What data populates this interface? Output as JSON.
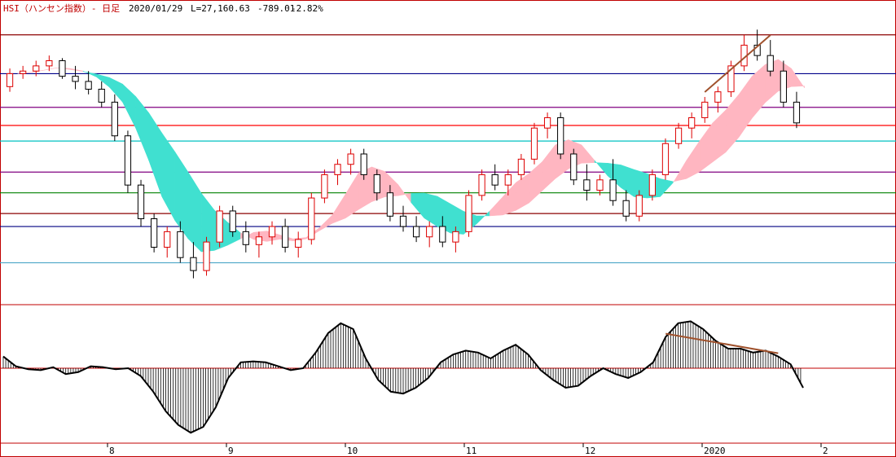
{
  "header": {
    "title": "HSI（ハンセン指数）- 日足",
    "date": "2020/01/29",
    "last": "L=27,160.63",
    "change": "-789.01",
    "change_pct": "-2.82%"
  },
  "colors": {
    "frame": "#c00000",
    "up_candle": "#dd0000",
    "down_candle": "#000000",
    "cloud_bullish": "#ffb6c1",
    "cloud_bearish": "#40e0d0",
    "trendline": "#a0522d",
    "macd_line": "#000000"
  },
  "chart_data": [
    {
      "type": "candlestick",
      "name": "price",
      "x_labels": [
        "8",
        "9",
        "10",
        "11",
        "12",
        "2020",
        "2"
      ],
      "horizontal_levels": [
        {
          "color": "#8b0000",
          "value": 0.96
        },
        {
          "color": "#00008b",
          "value": 0.81
        },
        {
          "color": "#800080",
          "value": 0.68
        },
        {
          "color": "#ff0000",
          "value": 0.61
        },
        {
          "color": "#00c0c0",
          "value": 0.55
        },
        {
          "color": "#800080",
          "value": 0.43
        },
        {
          "color": "#008000",
          "value": 0.35
        },
        {
          "color": "#8b0000",
          "value": 0.27
        },
        {
          "color": "#000080",
          "value": 0.22
        },
        {
          "color": "#4fa8c8",
          "value": 0.08
        }
      ],
      "ohlc_normalized": [
        [
          0.76,
          0.83,
          0.74,
          0.81
        ],
        [
          0.81,
          0.84,
          0.79,
          0.82
        ],
        [
          0.82,
          0.86,
          0.8,
          0.84
        ],
        [
          0.84,
          0.88,
          0.82,
          0.86
        ],
        [
          0.86,
          0.87,
          0.79,
          0.8
        ],
        [
          0.8,
          0.84,
          0.75,
          0.78
        ],
        [
          0.78,
          0.82,
          0.73,
          0.75
        ],
        [
          0.75,
          0.78,
          0.68,
          0.7
        ],
        [
          0.7,
          0.73,
          0.55,
          0.57
        ],
        [
          0.57,
          0.59,
          0.35,
          0.38
        ],
        [
          0.38,
          0.4,
          0.22,
          0.25
        ],
        [
          0.25,
          0.27,
          0.12,
          0.14
        ],
        [
          0.14,
          0.22,
          0.1,
          0.2
        ],
        [
          0.2,
          0.24,
          0.08,
          0.1
        ],
        [
          0.1,
          0.16,
          0.02,
          0.05
        ],
        [
          0.05,
          0.18,
          0.03,
          0.16
        ],
        [
          0.16,
          0.3,
          0.14,
          0.28
        ],
        [
          0.28,
          0.3,
          0.18,
          0.2
        ],
        [
          0.2,
          0.24,
          0.12,
          0.15
        ],
        [
          0.15,
          0.2,
          0.1,
          0.18
        ],
        [
          0.18,
          0.24,
          0.15,
          0.22
        ],
        [
          0.22,
          0.25,
          0.12,
          0.14
        ],
        [
          0.14,
          0.2,
          0.1,
          0.17
        ],
        [
          0.17,
          0.35,
          0.15,
          0.33
        ],
        [
          0.33,
          0.44,
          0.31,
          0.42
        ],
        [
          0.42,
          0.48,
          0.38,
          0.46
        ],
        [
          0.46,
          0.52,
          0.42,
          0.5
        ],
        [
          0.5,
          0.52,
          0.4,
          0.42
        ],
        [
          0.42,
          0.44,
          0.32,
          0.35
        ],
        [
          0.35,
          0.38,
          0.24,
          0.26
        ],
        [
          0.26,
          0.3,
          0.2,
          0.22
        ],
        [
          0.22,
          0.26,
          0.16,
          0.18
        ],
        [
          0.18,
          0.24,
          0.14,
          0.22
        ],
        [
          0.22,
          0.26,
          0.14,
          0.16
        ],
        [
          0.16,
          0.22,
          0.12,
          0.2
        ],
        [
          0.2,
          0.36,
          0.18,
          0.34
        ],
        [
          0.34,
          0.44,
          0.32,
          0.42
        ],
        [
          0.42,
          0.46,
          0.36,
          0.38
        ],
        [
          0.38,
          0.44,
          0.34,
          0.42
        ],
        [
          0.42,
          0.5,
          0.4,
          0.48
        ],
        [
          0.48,
          0.62,
          0.46,
          0.6
        ],
        [
          0.6,
          0.66,
          0.56,
          0.64
        ],
        [
          0.64,
          0.66,
          0.48,
          0.5
        ],
        [
          0.5,
          0.52,
          0.38,
          0.4
        ],
        [
          0.4,
          0.46,
          0.32,
          0.36
        ],
        [
          0.36,
          0.42,
          0.34,
          0.4
        ],
        [
          0.4,
          0.48,
          0.3,
          0.32
        ],
        [
          0.32,
          0.36,
          0.24,
          0.26
        ],
        [
          0.26,
          0.36,
          0.24,
          0.34
        ],
        [
          0.34,
          0.44,
          0.32,
          0.42
        ],
        [
          0.42,
          0.56,
          0.4,
          0.54
        ],
        [
          0.54,
          0.62,
          0.52,
          0.6
        ],
        [
          0.6,
          0.66,
          0.56,
          0.64
        ],
        [
          0.64,
          0.72,
          0.62,
          0.7
        ],
        [
          0.7,
          0.76,
          0.66,
          0.74
        ],
        [
          0.74,
          0.86,
          0.72,
          0.84
        ],
        [
          0.84,
          0.96,
          0.82,
          0.92
        ],
        [
          0.92,
          0.98,
          0.86,
          0.88
        ],
        [
          0.88,
          0.94,
          0.8,
          0.82
        ],
        [
          0.82,
          0.86,
          0.68,
          0.7
        ],
        [
          0.7,
          0.74,
          0.6,
          0.62
        ]
      ]
    },
    {
      "type": "bar",
      "name": "oscillator",
      "zero_line": 0,
      "values": [
        0.6,
        0.1,
        -0.05,
        -0.1,
        0.05,
        -0.3,
        -0.2,
        0.1,
        0.05,
        -0.05,
        0.0,
        -0.4,
        -1.2,
        -2.2,
        -2.9,
        -3.3,
        -3.0,
        -2.0,
        -0.5,
        0.3,
        0.35,
        0.3,
        0.1,
        -0.1,
        0.0,
        0.8,
        1.8,
        2.3,
        2.0,
        0.5,
        -0.6,
        -1.2,
        -1.3,
        -1.0,
        -0.5,
        0.3,
        0.7,
        0.9,
        0.8,
        0.5,
        0.9,
        1.2,
        0.7,
        -0.1,
        -0.6,
        -1.0,
        -0.9,
        -0.4,
        0.0,
        -0.3,
        -0.5,
        -0.2,
        0.3,
        1.6,
        2.3,
        2.4,
        2.0,
        1.4,
        1.0,
        1.0,
        0.8,
        0.9,
        0.6,
        0.2,
        -1.0
      ]
    }
  ]
}
